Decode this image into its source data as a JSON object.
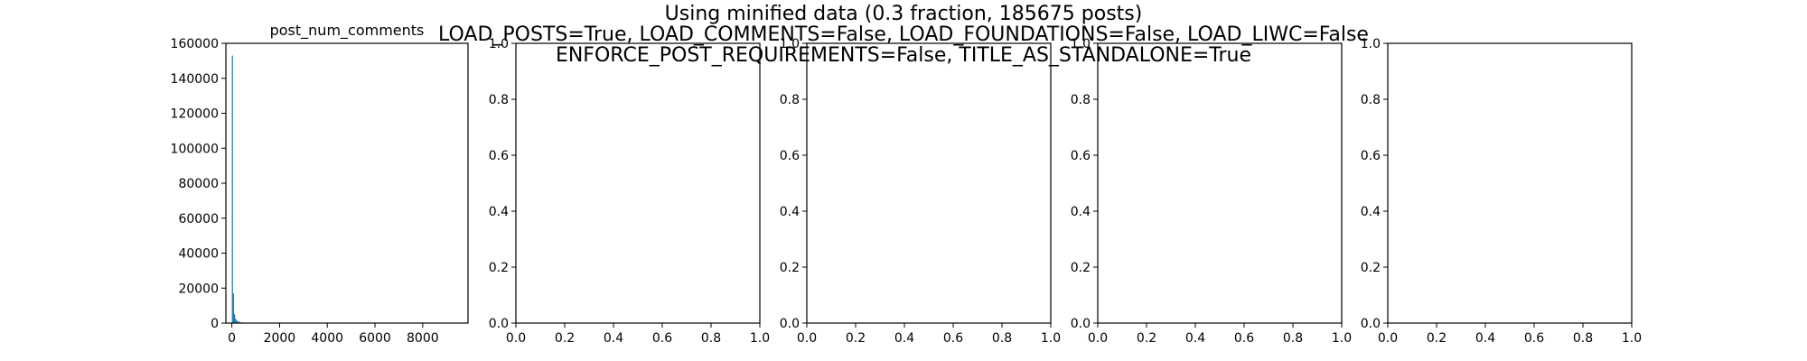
{
  "figure": {
    "suptitle_lines": [
      "Using minified data (0.3 fraction, 185675 posts)",
      "LOAD_POSTS=True, LOAD_COMMENTS=False, LOAD_FOUNDATIONS=False, LOAD_LIWC=False",
      "ENFORCE_POST_REQUIREMENTS=False, TITLE_AS_STANDALONE=True"
    ]
  },
  "colors": {
    "bar": "#1f77b4",
    "axes": "#000000"
  },
  "chart_data": [
    {
      "type": "bar",
      "title": "post_num_comments",
      "xlabel": "",
      "ylabel": "",
      "xlim": [
        -250,
        9900
      ],
      "ylim": [
        0,
        160000
      ],
      "xticks": [
        0,
        2000,
        4000,
        6000,
        8000
      ],
      "xtick_labels": [
        "0",
        "2000",
        "4000",
        "6000",
        "8000"
      ],
      "yticks": [
        0,
        20000,
        40000,
        60000,
        80000,
        100000,
        120000,
        140000,
        160000
      ],
      "ytick_labels": [
        "0",
        "20000",
        "40000",
        "60000",
        "80000",
        "100000",
        "120000",
        "140000",
        "160000"
      ],
      "bin_width": 46,
      "bins": [
        {
          "x": 0,
          "value": 153000
        },
        {
          "x": 46,
          "value": 17000
        },
        {
          "x": 92,
          "value": 5000
        },
        {
          "x": 138,
          "value": 2500
        },
        {
          "x": 184,
          "value": 1500
        },
        {
          "x": 230,
          "value": 1000
        },
        {
          "x": 276,
          "value": 700
        },
        {
          "x": 322,
          "value": 500
        },
        {
          "x": 368,
          "value": 400
        },
        {
          "x": 414,
          "value": 300
        },
        {
          "x": 460,
          "value": 250
        },
        {
          "x": 506,
          "value": 200
        },
        {
          "x": 552,
          "value": 160
        },
        {
          "x": 598,
          "value": 130
        },
        {
          "x": 644,
          "value": 110
        },
        {
          "x": 690,
          "value": 90
        },
        {
          "x": 736,
          "value": 80
        },
        {
          "x": 782,
          "value": 70
        },
        {
          "x": 828,
          "value": 60
        },
        {
          "x": 874,
          "value": 50
        },
        {
          "x": 920,
          "value": 45
        },
        {
          "x": 966,
          "value": 40
        }
      ]
    },
    {
      "type": "bar",
      "title": "",
      "xlim": [
        0,
        1
      ],
      "ylim": [
        0,
        1
      ],
      "xticks": [
        0,
        0.2,
        0.4,
        0.6,
        0.8,
        1.0
      ],
      "xtick_labels": [
        "0.0",
        "0.2",
        "0.4",
        "0.6",
        "0.8",
        "1.0"
      ],
      "yticks": [
        0,
        0.2,
        0.4,
        0.6,
        0.8,
        1.0
      ],
      "ytick_labels": [
        "0.0",
        "0.2",
        "0.4",
        "0.6",
        "0.8",
        "1.0"
      ],
      "bins": []
    },
    {
      "type": "bar",
      "title": "",
      "xlim": [
        0,
        1
      ],
      "ylim": [
        0,
        1
      ],
      "xticks": [
        0,
        0.2,
        0.4,
        0.6,
        0.8,
        1.0
      ],
      "xtick_labels": [
        "0.0",
        "0.2",
        "0.4",
        "0.6",
        "0.8",
        "1.0"
      ],
      "yticks": [
        0,
        0.2,
        0.4,
        0.6,
        0.8,
        1.0
      ],
      "ytick_labels": [
        "0.0",
        "0.2",
        "0.4",
        "0.6",
        "0.8",
        "1.0"
      ],
      "bins": []
    },
    {
      "type": "bar",
      "title": "",
      "xlim": [
        0,
        1
      ],
      "ylim": [
        0,
        1
      ],
      "xticks": [
        0,
        0.2,
        0.4,
        0.6,
        0.8,
        1.0
      ],
      "xtick_labels": [
        "0.0",
        "0.2",
        "0.4",
        "0.6",
        "0.8",
        "1.0"
      ],
      "yticks": [
        0,
        0.2,
        0.4,
        0.6,
        0.8,
        1.0
      ],
      "ytick_labels": [
        "0.0",
        "0.2",
        "0.4",
        "0.6",
        "0.8",
        "1.0"
      ],
      "bins": []
    },
    {
      "type": "bar",
      "title": "",
      "xlim": [
        0,
        1
      ],
      "ylim": [
        0,
        1
      ],
      "xticks": [
        0,
        0.2,
        0.4,
        0.6,
        0.8,
        1.0
      ],
      "xtick_labels": [
        "0.0",
        "0.2",
        "0.4",
        "0.6",
        "0.8",
        "1.0"
      ],
      "yticks": [
        0,
        0.2,
        0.4,
        0.6,
        0.8,
        1.0
      ],
      "ytick_labels": [
        "0.0",
        "0.2",
        "0.4",
        "0.6",
        "0.8",
        "1.0"
      ],
      "bins": []
    }
  ]
}
